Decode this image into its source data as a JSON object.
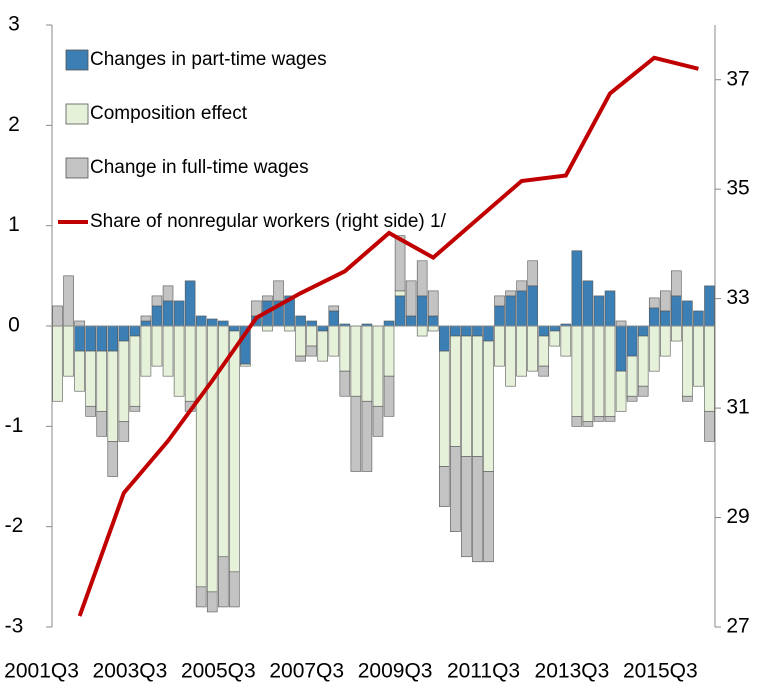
{
  "chart_data": {
    "type": "bar",
    "categories": [
      "2001Q3",
      null,
      null,
      null,
      null,
      null,
      null,
      null,
      "2003Q3",
      null,
      null,
      null,
      null,
      null,
      null,
      null,
      "2005Q3",
      null,
      null,
      null,
      null,
      null,
      null,
      null,
      "2007Q3",
      null,
      null,
      null,
      null,
      null,
      null,
      null,
      "2009Q3",
      null,
      null,
      null,
      null,
      null,
      null,
      null,
      "2011Q3",
      null,
      null,
      null,
      null,
      null,
      null,
      null,
      "2013Q3",
      null,
      null,
      null,
      null,
      null,
      null,
      null,
      "2015Q3",
      null,
      null,
      null
    ],
    "series": [
      {
        "name": "Changes in part-time wages",
        "type": "bar",
        "color": "#3b7fb4",
        "values": [
          0,
          0,
          -0.25,
          -0.25,
          -0.25,
          -0.25,
          -0.15,
          -0.1,
          0.05,
          0.2,
          0.25,
          0.25,
          0.45,
          0.1,
          0.07,
          0.05,
          -0.05,
          -0.38,
          0.1,
          0.25,
          0.25,
          0.3,
          0.1,
          0.05,
          -0.05,
          0.15,
          0.02,
          0,
          0.02,
          0,
          0.05,
          0.3,
          0.1,
          0.3,
          0.1,
          -0.25,
          -0.1,
          -0.1,
          -0.1,
          -0.15,
          0.2,
          0.3,
          0.35,
          0.4,
          -0.1,
          -0.05,
          0.02,
          0.75,
          0.45,
          0.3,
          0.35,
          -0.45,
          -0.3,
          -0.1,
          0.18,
          0.15,
          0.3,
          0.25,
          0.15,
          0.4
        ]
      },
      {
        "name": "Composition effect",
        "type": "bar",
        "color": "#e6f1da",
        "values": [
          -0.75,
          -0.5,
          -0.4,
          -0.55,
          -0.6,
          -0.9,
          -0.8,
          -0.7,
          -0.5,
          -0.4,
          -0.5,
          -0.7,
          -0.75,
          -2.6,
          -2.65,
          -2.3,
          -2.4,
          -0.02,
          0,
          -0.05,
          0,
          -0.05,
          -0.3,
          -0.2,
          -0.3,
          -0.3,
          -0.45,
          -0.7,
          -0.75,
          -0.8,
          -0.5,
          0.05,
          0,
          -0.1,
          -0.05,
          -1.15,
          -1.1,
          -1.2,
          -1.2,
          -1.3,
          -0.4,
          -0.6,
          -0.5,
          -0.45,
          -0.3,
          -0.15,
          -0.3,
          -0.9,
          -0.95,
          -0.9,
          -0.9,
          -0.4,
          -0.4,
          -0.5,
          -0.45,
          -0.3,
          -0.15,
          -0.7,
          -0.6,
          -0.85
        ]
      },
      {
        "name": "Change in full-time wages",
        "type": "bar",
        "color": "#c3c3c3",
        "values": [
          0.2,
          0.5,
          0.05,
          -0.1,
          -0.25,
          -0.35,
          -0.2,
          -0.05,
          0.05,
          0.1,
          0.15,
          0,
          -0.1,
          -0.2,
          -0.2,
          -0.5,
          -0.35,
          0,
          0.15,
          0.05,
          0.2,
          0,
          -0.05,
          -0.1,
          0,
          0.05,
          -0.25,
          -0.75,
          -0.7,
          -0.3,
          -0.4,
          0.55,
          0.35,
          0.35,
          0.25,
          -0.4,
          -0.85,
          -1.0,
          -1.05,
          -0.9,
          0.1,
          0.05,
          0.1,
          0.25,
          -0.1,
          0,
          0,
          -0.1,
          -0.05,
          -0.05,
          -0.05,
          0.05,
          -0.05,
          -0.1,
          0.1,
          0.2,
          0.25,
          -0.05,
          0,
          -0.3
        ]
      },
      {
        "name": "Share of nonregular workers (right side) 1/",
        "type": "line",
        "axis": "y2",
        "color": "#c00000",
        "values": [
          null,
          null,
          27.2,
          null,
          null,
          null,
          29.45,
          null,
          null,
          null,
          30.4,
          null,
          null,
          null,
          31.5,
          null,
          null,
          null,
          32.65,
          null,
          null,
          null,
          33.1,
          null,
          null,
          null,
          33.5,
          null,
          null,
          null,
          34.2,
          null,
          null,
          null,
          33.75,
          null,
          null,
          null,
          34.45,
          null,
          null,
          null,
          35.15,
          null,
          null,
          null,
          35.25,
          null,
          null,
          null,
          36.75,
          null,
          null,
          null,
          37.4,
          null,
          null,
          null,
          37.2,
          null
        ]
      }
    ],
    "ylim": [
      -3,
      3
    ],
    "yticks": [
      -3,
      -2,
      -1,
      0,
      1,
      2,
      3
    ],
    "y2lim": [
      27,
      38
    ],
    "y2ticks": [
      27,
      29,
      31,
      33,
      35,
      37
    ],
    "legend": "upper left"
  }
}
